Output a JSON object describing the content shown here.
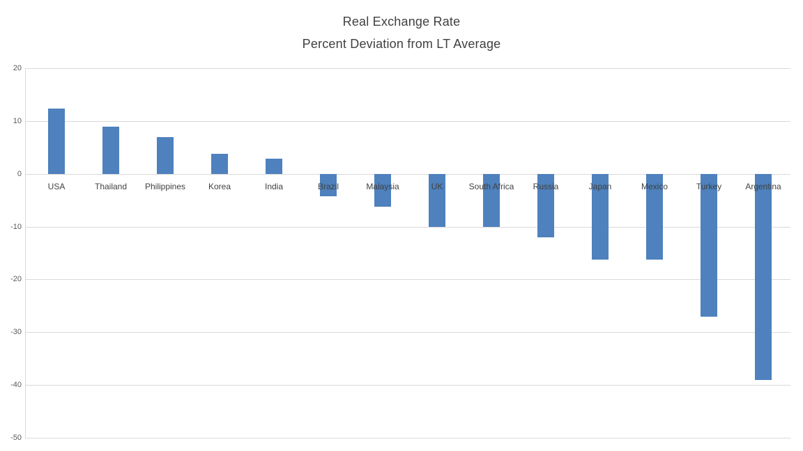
{
  "chart_data": {
    "type": "bar",
    "title": "Real Exchange Rate",
    "subtitle": "Percent Deviation from LT Average",
    "categories": [
      "USA",
      "Thailand",
      "Philippines",
      "Korea",
      "India",
      "Brazil",
      "Malaysia",
      "UK",
      "South Africa",
      "Russia",
      "Japan",
      "Mexico",
      "Turkey",
      "Argentina"
    ],
    "values": [
      12.3,
      8.9,
      6.9,
      3.8,
      2.8,
      -4.2,
      -6.2,
      -10.1,
      -10.1,
      -12.1,
      -16.2,
      -16.2,
      -27,
      -39
    ],
    "xlabel": "",
    "ylabel": "",
    "ylim": [
      -50,
      20
    ],
    "ytick_interval": 10,
    "ytick_labels": [
      "20",
      "10",
      "0",
      "-10",
      "-20",
      "-30",
      "-40",
      "-50"
    ],
    "grid": true,
    "legend": false,
    "colors": {
      "bar": "#4E81BD",
      "gridline": "#D9D9D9",
      "title_text": "#404040",
      "tick_label_text": "#595959",
      "category_label_text": "#404040",
      "background": "#FFFFFF"
    }
  }
}
